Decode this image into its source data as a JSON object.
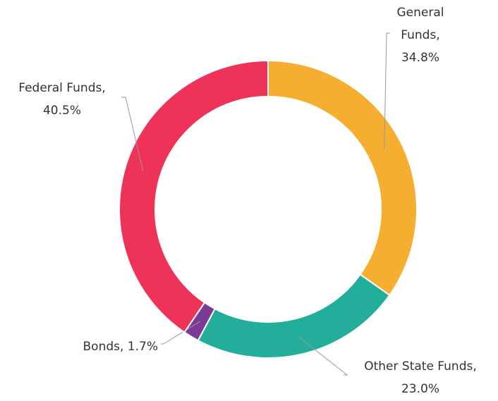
{
  "chart_data": {
    "type": "pie",
    "values": [
      34.8,
      23.0,
      1.7,
      40.5
    ],
    "value_labels": [
      "General Funds, 34.8%",
      "Other State Funds, 23.0%",
      "Bonds, 1.7%",
      "Federal Funds, 40.5%"
    ],
    "colors": [
      "#f5ae2f",
      "#22ae9b",
      "#7b3a96",
      "#ef3358"
    ]
  }
}
